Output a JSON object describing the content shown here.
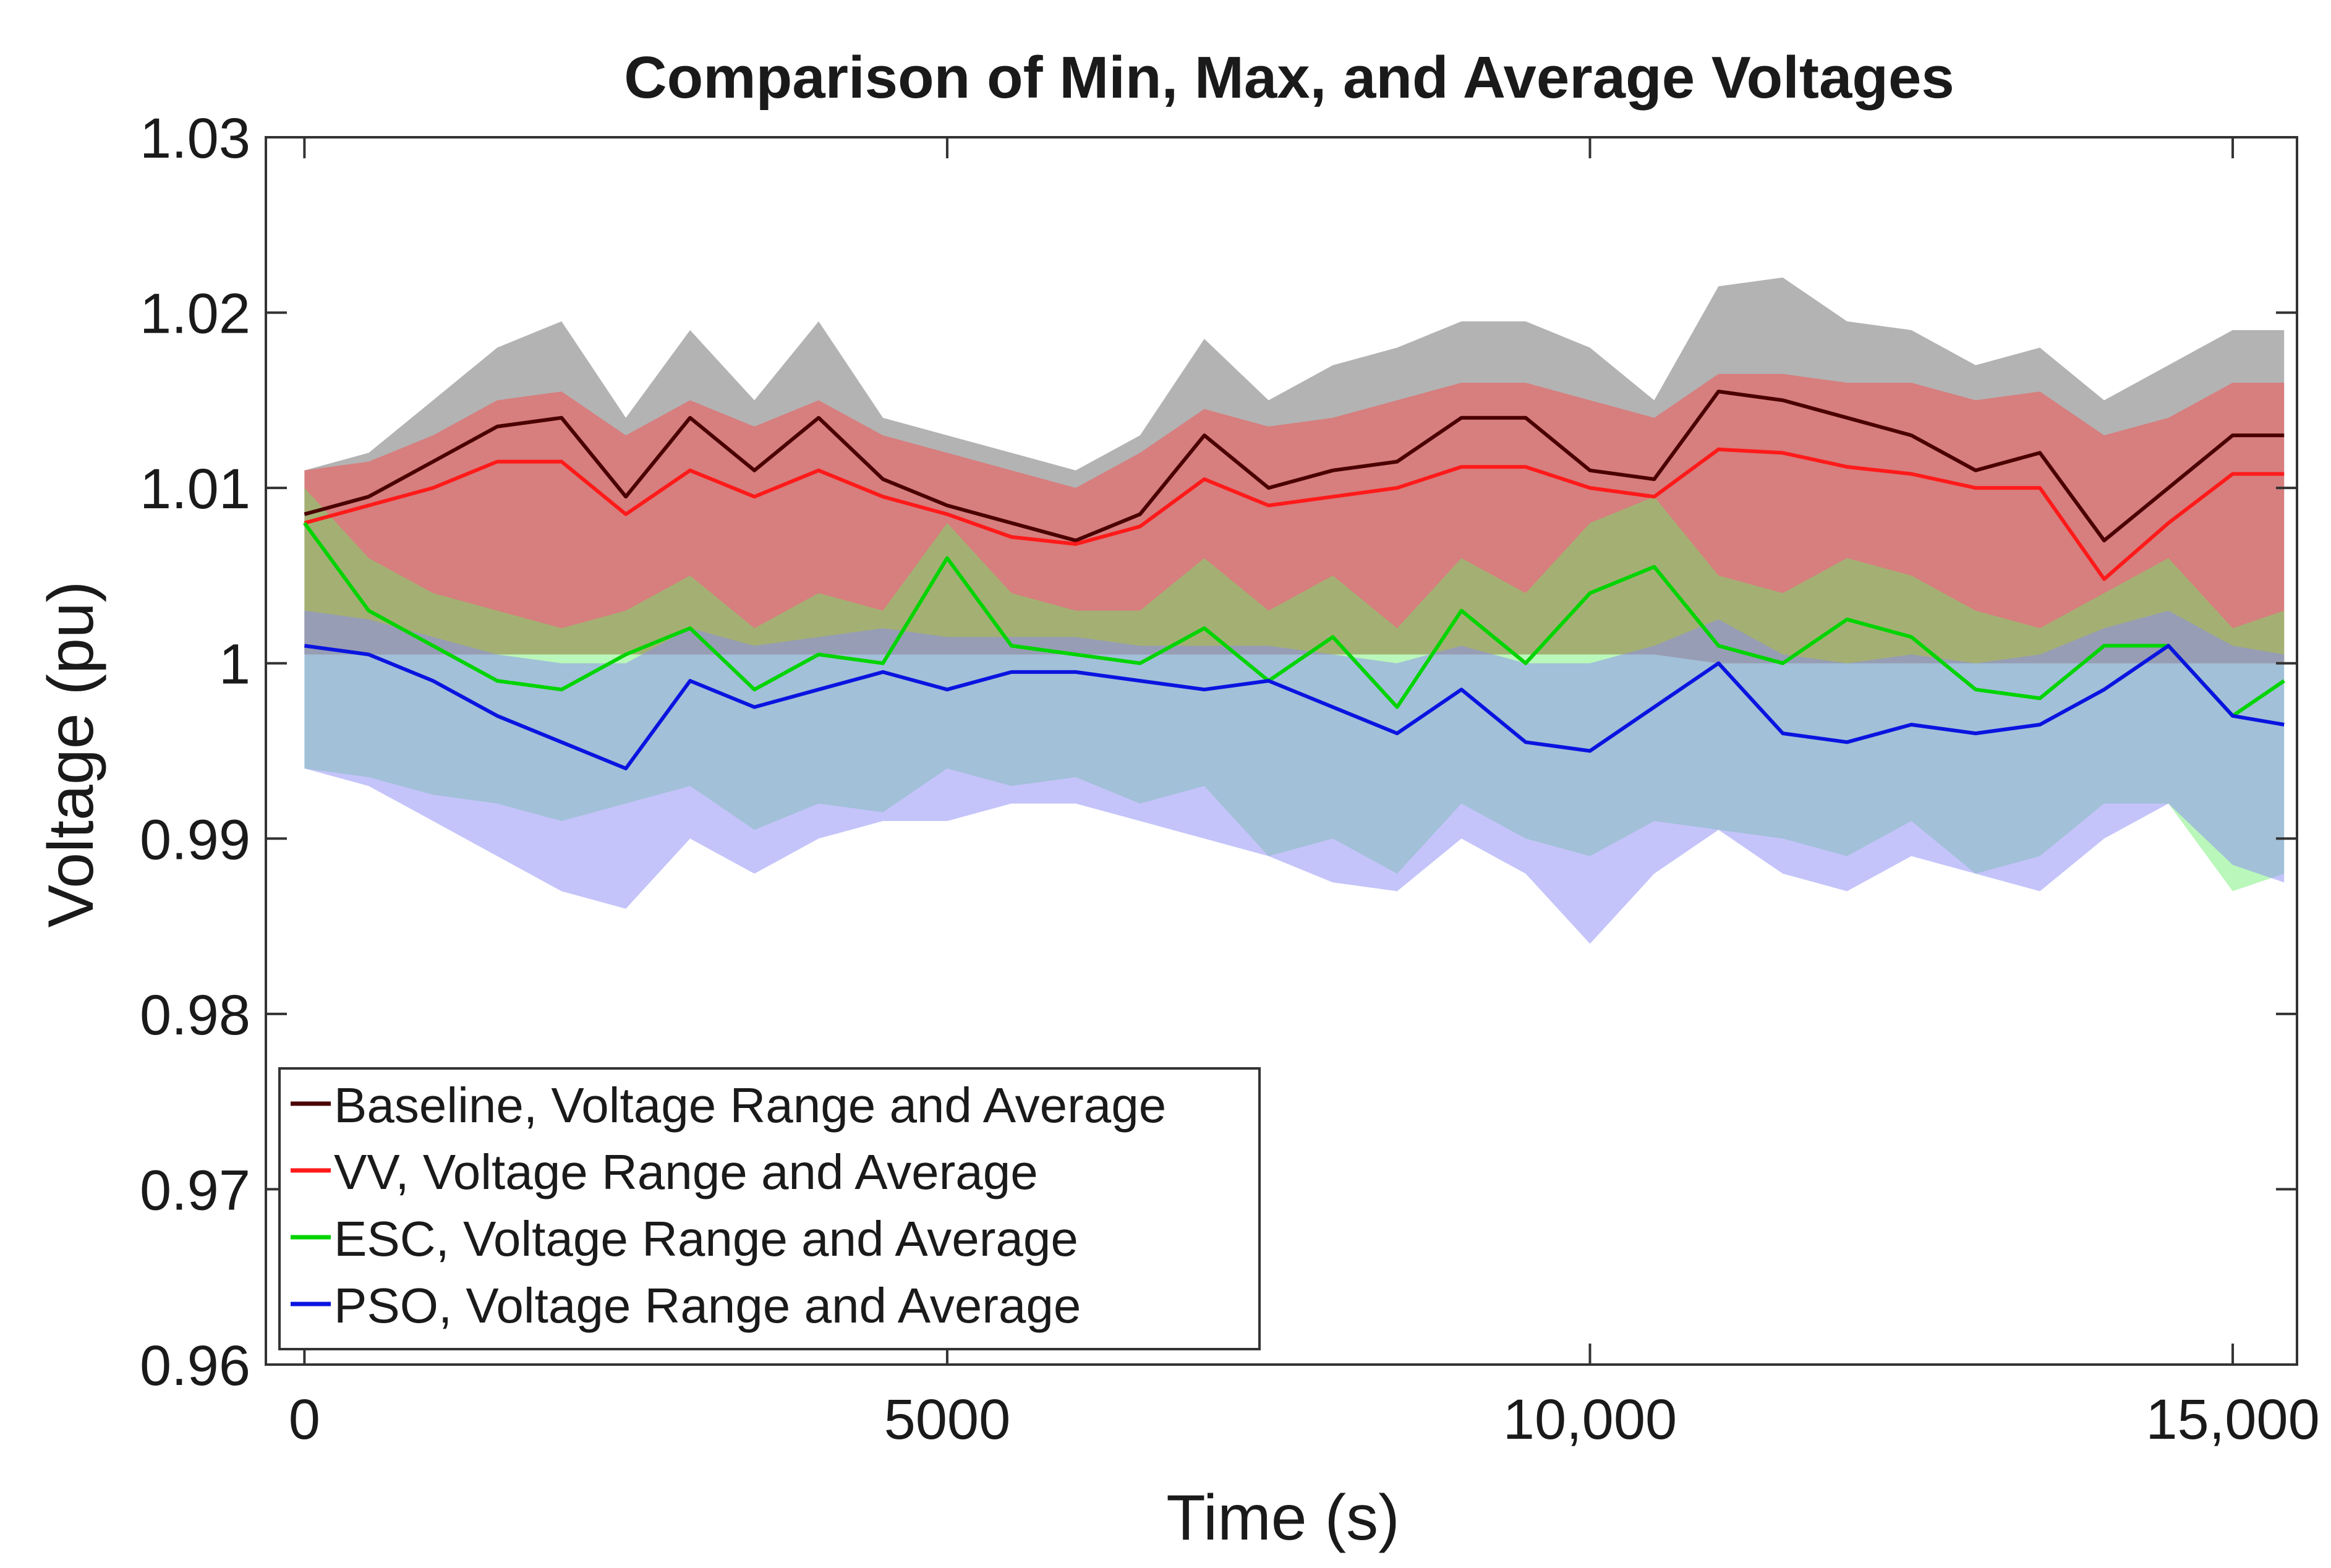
{
  "chart_data": {
    "type": "area",
    "title": "Comparison of Min, Max, and Average Voltages",
    "xlabel": "Time (s)",
    "ylabel": "Voltage (pu)",
    "xlim": [
      -300,
      15500
    ],
    "ylim": [
      0.96,
      1.03
    ],
    "xticks": [
      0,
      5000,
      10000,
      15000
    ],
    "xtick_labels": [
      "0",
      "5000",
      "10,000",
      "15,000"
    ],
    "yticks": [
      0.96,
      0.97,
      0.98,
      0.99,
      1.0,
      1.01,
      1.02,
      1.03
    ],
    "ytick_labels": [
      "0.96",
      "0.97",
      "0.98",
      "0.99",
      "1",
      "1.01",
      "1.02",
      "1.03"
    ],
    "grid": false,
    "legend_position": "bottom-left",
    "x": [
      0,
      500,
      1000,
      1500,
      2000,
      2500,
      3000,
      3500,
      4000,
      4500,
      5000,
      5500,
      6000,
      6500,
      7000,
      7500,
      8000,
      8500,
      9000,
      9500,
      10000,
      10500,
      11000,
      11500,
      12000,
      12500,
      13000,
      13500,
      14000,
      14500,
      15000,
      15400
    ],
    "series": [
      {
        "name": "Baseline, Voltage Range and Average",
        "color": "#4a0000",
        "band_color": "#9a9a9a",
        "avg": [
          1.0085,
          1.0095,
          1.0115,
          1.0135,
          1.014,
          1.0095,
          1.014,
          1.011,
          1.014,
          1.0105,
          1.009,
          1.008,
          1.007,
          1.0085,
          1.013,
          1.01,
          1.011,
          1.0115,
          1.014,
          1.014,
          1.011,
          1.0105,
          1.0155,
          1.015,
          1.014,
          1.013,
          1.011,
          1.012,
          1.007,
          1.01,
          1.013,
          1.013
        ],
        "min": [
          1.0005,
          1.0005,
          1.0005,
          1.0005,
          1.0005,
          1.0005,
          1.0005,
          1.0005,
          1.0005,
          1.0005,
          1.0005,
          1.0005,
          1.0005,
          1.0005,
          1.0005,
          1.0005,
          1.0005,
          1.0005,
          1.0005,
          1.0005,
          1.0005,
          1.0005,
          1.0,
          1.0,
          1.0,
          1.0,
          1.0,
          1.0,
          1.0,
          1.0,
          1.0,
          1.0
        ],
        "max": [
          1.011,
          1.012,
          1.015,
          1.018,
          1.0195,
          1.014,
          1.019,
          1.015,
          1.0195,
          1.014,
          1.013,
          1.012,
          1.011,
          1.013,
          1.0185,
          1.015,
          1.017,
          1.018,
          1.0195,
          1.0195,
          1.018,
          1.015,
          1.0215,
          1.022,
          1.0195,
          1.019,
          1.017,
          1.018,
          1.015,
          1.017,
          1.019,
          1.019
        ]
      },
      {
        "name": "VV, Voltage Range and Average",
        "color": "#ff1a1a",
        "band_color": "#e07070",
        "avg": [
          1.008,
          1.009,
          1.01,
          1.0115,
          1.0115,
          1.0085,
          1.011,
          1.0095,
          1.011,
          1.0095,
          1.0085,
          1.0072,
          1.0068,
          1.0078,
          1.0105,
          1.009,
          1.0095,
          1.01,
          1.0112,
          1.0112,
          1.01,
          1.0095,
          1.0122,
          1.012,
          1.0112,
          1.0108,
          1.01,
          1.01,
          1.0048,
          1.008,
          1.0108,
          1.0108
        ],
        "min": [
          1.0005,
          1.0005,
          1.0005,
          1.0005,
          1.0005,
          1.0005,
          1.0005,
          1.0005,
          1.0005,
          1.0005,
          1.0005,
          1.0005,
          1.0005,
          1.0005,
          1.0005,
          1.0005,
          1.0005,
          1.0005,
          1.0005,
          1.0005,
          1.0005,
          1.0005,
          1.0,
          1.0,
          1.0,
          1.0,
          1.0,
          1.0,
          1.0,
          1.0,
          1.0,
          1.0
        ],
        "max": [
          1.011,
          1.0115,
          1.013,
          1.015,
          1.0155,
          1.013,
          1.015,
          1.0135,
          1.015,
          1.013,
          1.012,
          1.011,
          1.01,
          1.012,
          1.0145,
          1.0135,
          1.014,
          1.015,
          1.016,
          1.016,
          1.015,
          1.014,
          1.0165,
          1.0165,
          1.016,
          1.016,
          1.015,
          1.0155,
          1.013,
          1.014,
          1.016,
          1.016
        ]
      },
      {
        "name": "ESC, Voltage Range and Average",
        "color": "#00d400",
        "band_color": "#66ee66",
        "avg": [
          1.008,
          1.003,
          1.001,
          0.999,
          0.9985,
          1.0005,
          1.002,
          0.9985,
          1.0005,
          1.0,
          1.006,
          1.001,
          1.0005,
          1.0,
          1.002,
          0.999,
          1.0015,
          0.9975,
          1.003,
          1.0,
          1.004,
          1.0055,
          1.001,
          1.0,
          1.0025,
          1.0015,
          0.9985,
          0.998,
          1.001,
          1.001,
          0.997,
          0.999
        ],
        "min": [
          0.994,
          0.9935,
          0.9925,
          0.992,
          0.991,
          0.992,
          0.993,
          0.9905,
          0.992,
          0.9915,
          0.994,
          0.993,
          0.9935,
          0.992,
          0.993,
          0.989,
          0.99,
          0.988,
          0.992,
          0.99,
          0.989,
          0.991,
          0.9905,
          0.99,
          0.989,
          0.991,
          0.988,
          0.989,
          0.992,
          0.992,
          0.987,
          0.988
        ],
        "max": [
          1.01,
          1.006,
          1.004,
          1.003,
          1.002,
          1.003,
          1.005,
          1.002,
          1.004,
          1.003,
          1.008,
          1.004,
          1.003,
          1.003,
          1.006,
          1.003,
          1.005,
          1.002,
          1.006,
          1.004,
          1.008,
          1.0095,
          1.005,
          1.004,
          1.006,
          1.005,
          1.003,
          1.002,
          1.004,
          1.006,
          1.002,
          1.003
        ]
      },
      {
        "name": "PSO, Voltage Range and Average",
        "color": "#0a14e0",
        "band_color": "#8a8af5",
        "avg": [
          1.001,
          1.0005,
          0.999,
          0.997,
          0.9955,
          0.994,
          0.999,
          0.9975,
          0.9985,
          0.9995,
          0.9985,
          0.9995,
          0.9995,
          0.999,
          0.9985,
          0.999,
          0.9975,
          0.996,
          0.9985,
          0.9955,
          0.995,
          0.9975,
          1.0,
          0.996,
          0.9955,
          0.9965,
          0.996,
          0.9965,
          0.9985,
          1.001,
          0.997,
          0.9965
        ],
        "min": [
          0.994,
          0.993,
          0.991,
          0.989,
          0.987,
          0.986,
          0.99,
          0.988,
          0.99,
          0.991,
          0.991,
          0.992,
          0.992,
          0.991,
          0.99,
          0.989,
          0.9875,
          0.987,
          0.99,
          0.988,
          0.984,
          0.988,
          0.9905,
          0.988,
          0.987,
          0.989,
          0.988,
          0.987,
          0.99,
          0.992,
          0.9885,
          0.9875
        ],
        "max": [
          1.003,
          1.0025,
          1.0015,
          1.0005,
          1.0,
          1.0,
          1.002,
          1.001,
          1.0015,
          1.002,
          1.0015,
          1.0015,
          1.0015,
          1.001,
          1.001,
          1.001,
          1.0005,
          1.0,
          1.001,
          1.0,
          1.0,
          1.001,
          1.0025,
          1.0005,
          1.0,
          1.0005,
          1.0,
          1.0005,
          1.002,
          1.003,
          1.001,
          1.0005
        ]
      }
    ]
  }
}
